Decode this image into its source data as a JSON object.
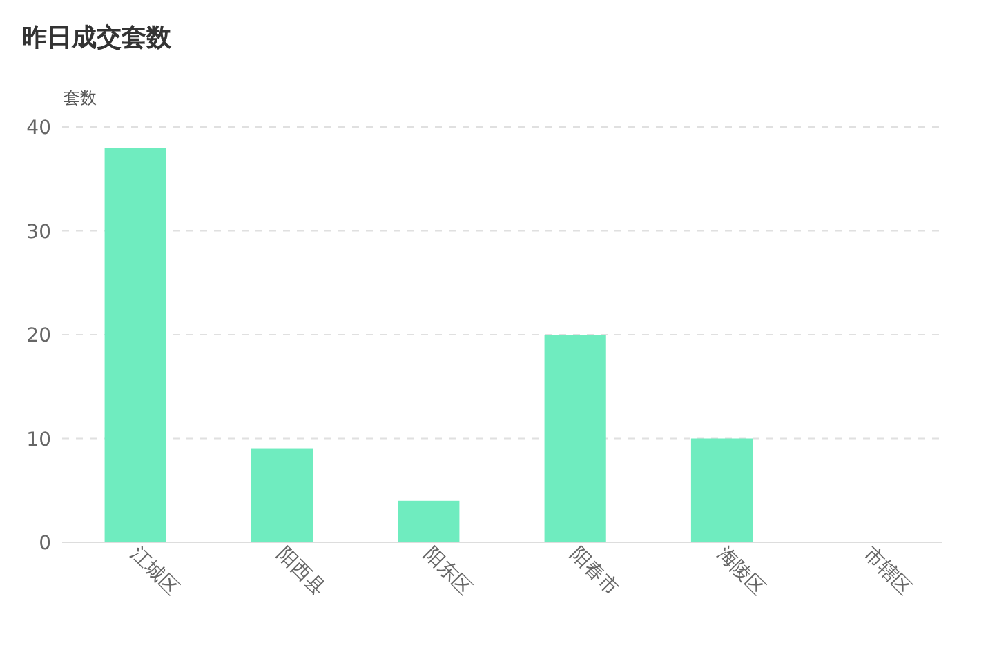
{
  "chart_data": {
    "type": "bar",
    "title": "昨日成交套数",
    "ylabel": "套数",
    "categories": [
      "江城区",
      "阳西县",
      "阳东区",
      "阳春市",
      "海陵区",
      "市辖区"
    ],
    "values": [
      38,
      9,
      4,
      20,
      10,
      0
    ],
    "color": "#6fecbf",
    "ylim": [
      0,
      40
    ],
    "yticks": [
      0,
      10,
      20,
      30,
      40
    ],
    "grid": "y"
  }
}
